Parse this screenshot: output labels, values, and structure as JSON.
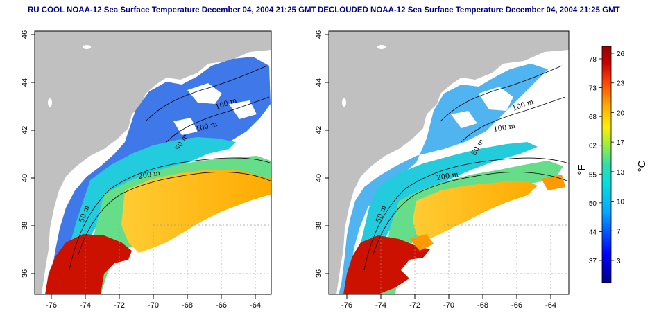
{
  "titles": {
    "left": "RU COOL NOAA-12 Sea Surface Temperature December 04, 2004 21:25 GMT",
    "right": "DECLOUDED NOAA-12 Sea Surface Temperature December 04, 2004 21:25 GMT"
  },
  "axes": {
    "lon_ticks": [
      "-76",
      "-74",
      "-72",
      "-70",
      "-68",
      "-66",
      "-64"
    ],
    "lat_ticks": [
      "36",
      "38",
      "40",
      "42",
      "44",
      "46"
    ]
  },
  "contours": {
    "c100a": "100 m",
    "c100b": "100 m",
    "c50a": "50 m",
    "c200": "200 m",
    "c50b": "50 m"
  },
  "colorbar": {
    "unit_f": "°F",
    "unit_c": "°C",
    "f_labels": [
      "78",
      "73",
      "68",
      "62",
      "55",
      "50",
      "44",
      "37"
    ],
    "c_labels": [
      "26",
      "23",
      "20",
      "17",
      "13",
      "10",
      "7",
      "3"
    ],
    "colors": [
      "#00008b",
      "#0000ff",
      "#00aaff",
      "#00e0e0",
      "#33ddaa",
      "#99ee44",
      "#ffee00",
      "#ffaa00",
      "#ff4400",
      "#cc0000",
      "#990000"
    ]
  },
  "colors": {
    "land": "#c0c0c0",
    "title": "#00008b"
  }
}
